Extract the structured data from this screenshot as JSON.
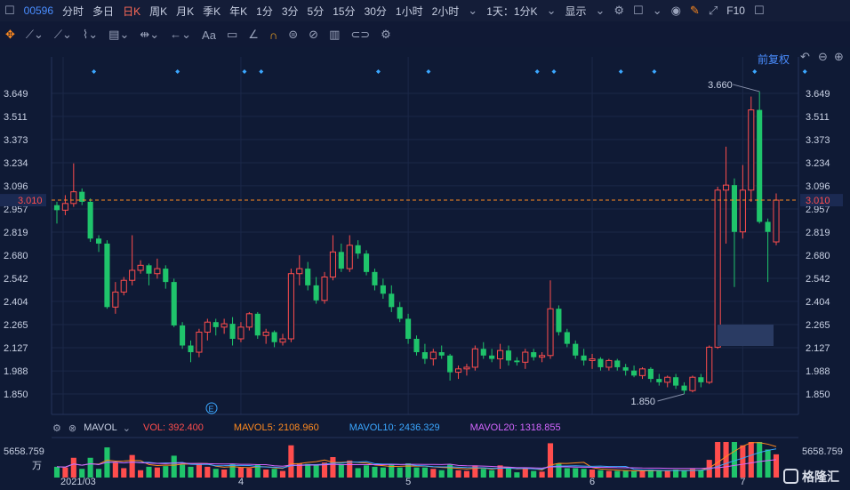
{
  "topbar": {
    "code": "00596",
    "periods": [
      "分时",
      "多日",
      "日K",
      "周K",
      "月K",
      "季K",
      "年K",
      "1分",
      "3分",
      "5分",
      "15分",
      "30分",
      "1小时",
      "2小时"
    ],
    "active_index": 2,
    "combo_label": "1天：1分K",
    "display_label": "显示",
    "f10_label": "F10"
  },
  "toolbar2": {
    "text_label": "Aa"
  },
  "chart": {
    "fq_label": "前复权",
    "price_ticks": [
      "3.649",
      "3.511",
      "3.373",
      "3.234",
      "3.096",
      "2.957",
      "2.819",
      "2.680",
      "2.542",
      "2.404",
      "2.265",
      "2.127",
      "1.988",
      "1.850"
    ],
    "current_price": "3.010",
    "high_label": "3.660",
    "low_label": "1.850",
    "x_labels": [
      "2021/03",
      "4",
      "5",
      "6",
      "7"
    ],
    "event_marker": "E"
  },
  "indicator": {
    "name": "MAVOL",
    "vol": "VOL: 392.400",
    "mavol5": "MAVOL5: 2108.960",
    "mavol10": "MAVOL10: 2436.329",
    "mavol20": "MAVOL20: 1318.855",
    "vol_max": "5658.759",
    "unit": "万"
  },
  "watermark": "格隆汇",
  "colors": {
    "up": "#ff4d4d",
    "down": "#1fc46b",
    "accent": "#4a8dff",
    "mavol5": "#ff8a1f",
    "mavol10": "#3ba7ff",
    "mavol20": "#d466ff"
  },
  "chart_data": {
    "type": "candlestick",
    "y_axis_range": [
      1.85,
      3.649
    ],
    "last_close": 3.01,
    "highest": 3.66,
    "lowest": 1.85,
    "ohlc": [
      [
        2.98,
        3.0,
        2.87,
        2.95
      ],
      [
        2.95,
        3.04,
        2.92,
        2.99
      ],
      [
        2.99,
        3.23,
        2.97,
        3.06
      ],
      [
        3.06,
        3.08,
        2.98,
        3.0
      ],
      [
        3.0,
        3.02,
        2.76,
        2.78
      ],
      [
        2.78,
        2.8,
        2.7,
        2.75
      ],
      [
        2.75,
        2.77,
        2.36,
        2.37
      ],
      [
        2.37,
        2.52,
        2.33,
        2.46
      ],
      [
        2.46,
        2.55,
        2.44,
        2.53
      ],
      [
        2.53,
        2.8,
        2.5,
        2.59
      ],
      [
        2.59,
        2.65,
        2.57,
        2.62
      ],
      [
        2.62,
        2.63,
        2.5,
        2.57
      ],
      [
        2.57,
        2.66,
        2.54,
        2.6
      ],
      [
        2.6,
        2.62,
        2.48,
        2.52
      ],
      [
        2.52,
        2.54,
        2.25,
        2.26
      ],
      [
        2.26,
        2.28,
        2.12,
        2.14
      ],
      [
        2.14,
        2.17,
        2.04,
        2.1
      ],
      [
        2.1,
        2.24,
        2.07,
        2.22
      ],
      [
        2.22,
        2.3,
        2.17,
        2.28
      ],
      [
        2.28,
        2.3,
        2.2,
        2.25
      ],
      [
        2.25,
        2.3,
        2.21,
        2.27
      ],
      [
        2.27,
        2.31,
        2.14,
        2.18
      ],
      [
        2.18,
        2.28,
        2.16,
        2.25
      ],
      [
        2.25,
        2.34,
        2.23,
        2.33
      ],
      [
        2.33,
        2.34,
        2.18,
        2.2
      ],
      [
        2.2,
        2.24,
        2.15,
        2.22
      ],
      [
        2.22,
        2.23,
        2.13,
        2.16
      ],
      [
        2.16,
        2.21,
        2.14,
        2.18
      ],
      [
        2.18,
        2.6,
        2.16,
        2.57
      ],
      [
        2.57,
        2.68,
        2.5,
        2.6
      ],
      [
        2.6,
        2.64,
        2.47,
        2.5
      ],
      [
        2.5,
        2.55,
        2.39,
        2.41
      ],
      [
        2.41,
        2.58,
        2.39,
        2.55
      ],
      [
        2.55,
        2.8,
        2.53,
        2.7
      ],
      [
        2.7,
        2.75,
        2.58,
        2.6
      ],
      [
        2.6,
        2.8,
        2.58,
        2.74
      ],
      [
        2.74,
        2.77,
        2.66,
        2.69
      ],
      [
        2.69,
        2.71,
        2.56,
        2.58
      ],
      [
        2.58,
        2.6,
        2.47,
        2.5
      ],
      [
        2.5,
        2.54,
        2.42,
        2.45
      ],
      [
        2.45,
        2.5,
        2.34,
        2.37
      ],
      [
        2.37,
        2.4,
        2.28,
        2.3
      ],
      [
        2.3,
        2.33,
        2.15,
        2.18
      ],
      [
        2.18,
        2.2,
        2.08,
        2.1
      ],
      [
        2.1,
        2.15,
        2.03,
        2.06
      ],
      [
        2.06,
        2.12,
        2.02,
        2.1
      ],
      [
        2.1,
        2.14,
        2.06,
        2.08
      ],
      [
        2.08,
        2.09,
        1.93,
        1.98
      ],
      [
        1.98,
        2.02,
        1.94,
        2.0
      ],
      [
        2.0,
        2.03,
        1.96,
        2.01
      ],
      [
        2.01,
        2.14,
        1.99,
        2.12
      ],
      [
        2.12,
        2.16,
        2.06,
        2.08
      ],
      [
        2.08,
        2.12,
        2.04,
        2.06
      ],
      [
        2.06,
        2.15,
        2.0,
        2.11
      ],
      [
        2.11,
        2.14,
        2.02,
        2.05
      ],
      [
        2.05,
        2.07,
        2.02,
        2.04
      ],
      [
        2.04,
        2.12,
        2.0,
        2.1
      ],
      [
        2.1,
        2.12,
        2.05,
        2.07
      ],
      [
        2.07,
        2.1,
        2.04,
        2.08
      ],
      [
        2.08,
        2.53,
        2.06,
        2.36
      ],
      [
        2.36,
        2.38,
        2.2,
        2.22
      ],
      [
        2.22,
        2.24,
        2.13,
        2.15
      ],
      [
        2.15,
        2.17,
        2.06,
        2.08
      ],
      [
        2.08,
        2.12,
        2.02,
        2.05
      ],
      [
        2.05,
        2.09,
        2.0,
        2.06
      ],
      [
        2.06,
        2.07,
        1.99,
        2.01
      ],
      [
        2.01,
        2.06,
        1.99,
        2.05
      ],
      [
        2.05,
        2.06,
        1.99,
        2.01
      ],
      [
        2.01,
        2.03,
        1.96,
        1.99
      ],
      [
        1.99,
        2.02,
        1.95,
        1.96
      ],
      [
        1.96,
        2.01,
        1.94,
        2.0
      ],
      [
        2.0,
        2.01,
        1.92,
        1.94
      ],
      [
        1.94,
        1.97,
        1.9,
        1.92
      ],
      [
        1.92,
        1.96,
        1.89,
        1.95
      ],
      [
        1.95,
        1.97,
        1.88,
        1.9
      ],
      [
        1.9,
        1.92,
        1.85,
        1.87
      ],
      [
        1.87,
        1.96,
        1.86,
        1.95
      ],
      [
        1.95,
        1.97,
        1.89,
        1.92
      ],
      [
        1.92,
        2.14,
        1.91,
        2.13
      ],
      [
        2.13,
        3.09,
        2.12,
        3.07
      ],
      [
        3.07,
        3.33,
        2.75,
        3.1
      ],
      [
        3.1,
        3.14,
        2.49,
        2.82
      ],
      [
        2.82,
        3.22,
        2.78,
        3.07
      ],
      [
        3.07,
        3.63,
        3.0,
        3.55
      ],
      [
        3.55,
        3.66,
        2.87,
        2.88
      ],
      [
        2.88,
        2.9,
        2.52,
        2.82
      ],
      [
        2.76,
        3.05,
        2.74,
        3.01
      ]
    ],
    "volume_max": 5658.759
  }
}
